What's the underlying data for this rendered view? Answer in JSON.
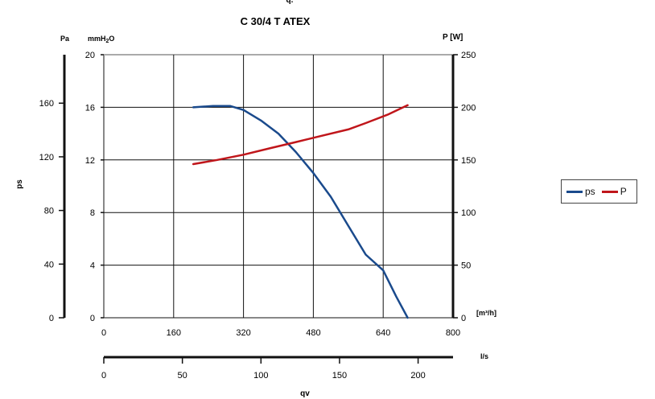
{
  "chart_data": {
    "type": "line",
    "top_mark": "q.",
    "title": "C 30/4 T ATEX",
    "left_axis_units": {
      "pa": "Pa",
      "mmh2o_main": "mmH",
      "mmh2o_sub": "2",
      "mmh2o_end": "O"
    },
    "ylabel": "ps",
    "y2label": "P [W]",
    "x_unit_label": "[m³/h]",
    "x2_unit_label": "l/s",
    "x2label": "qv",
    "x_ticks": [
      "0",
      "160",
      "320",
      "480",
      "640",
      "800"
    ],
    "x_range": [
      0,
      800
    ],
    "x2_ticks": [
      "0",
      "50",
      "100",
      "150",
      "200"
    ],
    "x2_values": [
      0,
      50,
      100,
      150,
      200
    ],
    "x2_range": [
      0,
      222.22
    ],
    "y_pa_ticks": [
      "0",
      "40",
      "80",
      "120",
      "160"
    ],
    "y_pa_values": [
      0,
      40,
      80,
      120,
      160
    ],
    "y_pa_range": [
      0,
      196.13
    ],
    "y_mm_ticks": [
      "0",
      "4",
      "8",
      "12",
      "16",
      "20"
    ],
    "y_mm_range": [
      0,
      20
    ],
    "y2_ticks": [
      "0",
      "50",
      "100",
      "150",
      "200",
      "250"
    ],
    "y2_range": [
      0,
      250
    ],
    "grid": true,
    "legend_position": "right",
    "series": [
      {
        "name": "ps",
        "color": "#1a4a8c",
        "axis": "mmH2O",
        "points": [
          [
            205,
            16.0
          ],
          [
            250,
            16.1
          ],
          [
            290,
            16.1
          ],
          [
            320,
            15.8
          ],
          [
            360,
            15.0
          ],
          [
            400,
            14.0
          ],
          [
            440,
            12.6
          ],
          [
            480,
            11.0
          ],
          [
            520,
            9.2
          ],
          [
            560,
            7.0
          ],
          [
            600,
            4.8
          ],
          [
            640,
            3.6
          ],
          [
            670,
            1.6
          ],
          [
            696,
            0
          ]
        ]
      },
      {
        "name": "P",
        "color": "#c0161b",
        "axis": "W",
        "points": [
          [
            205,
            146
          ],
          [
            260,
            150
          ],
          [
            320,
            155
          ],
          [
            380,
            161
          ],
          [
            440,
            167
          ],
          [
            500,
            173
          ],
          [
            560,
            179
          ],
          [
            600,
            185
          ],
          [
            650,
            193
          ],
          [
            696,
            202
          ]
        ]
      }
    ]
  }
}
